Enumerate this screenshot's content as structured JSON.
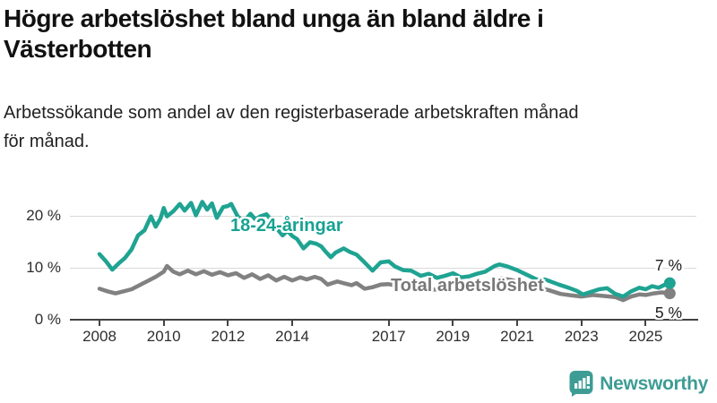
{
  "header": {
    "title": "Högre arbetslöshet bland unga än bland äldre i\nVästerbotten",
    "subtitle": "Arbetssökande som andel av den registerbaserade arbetskraften månad\nför månad."
  },
  "chart_data": {
    "type": "line",
    "title": "Högre arbetslöshet bland unga än bland äldre i Västerbotten",
    "subtitle": "Arbetssökande som andel av den registerbaserade arbetskraften månad för månad.",
    "unit": "%",
    "grid": "horizontal-only",
    "legend_position": "inline-labels",
    "xlim": [
      2008,
      2025.9
    ],
    "ylim": [
      0,
      23
    ],
    "y_ticks": [
      {
        "label": "20 %",
        "value": 20
      },
      {
        "label": "10 %",
        "value": 10
      },
      {
        "label": "0 %",
        "value": 0
      }
    ],
    "x_ticks": [
      {
        "label": "2008",
        "value": 2008
      },
      {
        "label": "2010",
        "value": 2010
      },
      {
        "label": "2012",
        "value": 2012
      },
      {
        "label": "2014",
        "value": 2014
      },
      {
        "label": "2017",
        "value": 2017
      },
      {
        "label": "2019",
        "value": 2019
      },
      {
        "label": "2021",
        "value": 2021
      },
      {
        "label": "2023",
        "value": 2023
      },
      {
        "label": "2025",
        "value": 2025
      }
    ],
    "series": [
      {
        "name": "18-24-åringar",
        "color": "#1fa392",
        "end_label": "7 %",
        "end_value": 7,
        "points": [
          [
            2008.0,
            12.6
          ],
          [
            2008.2,
            11.2
          ],
          [
            2008.4,
            9.6
          ],
          [
            2008.6,
            10.8
          ],
          [
            2008.8,
            11.9
          ],
          [
            2009.0,
            13.5
          ],
          [
            2009.2,
            16.2
          ],
          [
            2009.4,
            17.2
          ],
          [
            2009.6,
            19.9
          ],
          [
            2009.75,
            17.9
          ],
          [
            2009.9,
            19.5
          ],
          [
            2010.0,
            21.5
          ],
          [
            2010.1,
            19.9
          ],
          [
            2010.3,
            20.9
          ],
          [
            2010.5,
            22.3
          ],
          [
            2010.65,
            21.0
          ],
          [
            2010.85,
            22.5
          ],
          [
            2011.0,
            20.1
          ],
          [
            2011.2,
            22.7
          ],
          [
            2011.35,
            21.2
          ],
          [
            2011.5,
            22.4
          ],
          [
            2011.65,
            19.6
          ],
          [
            2011.85,
            21.7
          ],
          [
            2012.0,
            21.9
          ],
          [
            2012.1,
            22.3
          ],
          [
            2012.3,
            19.9
          ],
          [
            2012.5,
            18.9
          ],
          [
            2012.7,
            20.4
          ],
          [
            2012.85,
            19.3
          ],
          [
            2013.0,
            19.9
          ],
          [
            2013.2,
            20.3
          ],
          [
            2013.4,
            18.8
          ],
          [
            2013.55,
            17.3
          ],
          [
            2013.7,
            16.2
          ],
          [
            2013.85,
            17.1
          ],
          [
            2014.0,
            16.1
          ],
          [
            2014.15,
            15.5
          ],
          [
            2014.35,
            13.7
          ],
          [
            2014.55,
            14.9
          ],
          [
            2014.75,
            14.6
          ],
          [
            2014.9,
            14.1
          ],
          [
            2015.05,
            13.0
          ],
          [
            2015.2,
            12.0
          ],
          [
            2015.35,
            12.9
          ],
          [
            2015.6,
            13.7
          ],
          [
            2015.8,
            13.0
          ],
          [
            2016.0,
            12.5
          ],
          [
            2016.2,
            11.3
          ],
          [
            2016.5,
            9.4
          ],
          [
            2016.75,
            11.0
          ],
          [
            2017.0,
            11.2
          ],
          [
            2017.2,
            10.2
          ],
          [
            2017.45,
            9.5
          ],
          [
            2017.7,
            9.4
          ],
          [
            2018.0,
            8.4
          ],
          [
            2018.25,
            8.8
          ],
          [
            2018.5,
            8.0
          ],
          [
            2018.75,
            8.4
          ],
          [
            2019.0,
            8.9
          ],
          [
            2019.25,
            8.1
          ],
          [
            2019.5,
            8.3
          ],
          [
            2019.75,
            8.8
          ],
          [
            2020.0,
            9.2
          ],
          [
            2020.3,
            10.3
          ],
          [
            2020.45,
            10.6
          ],
          [
            2020.7,
            10.2
          ],
          [
            2021.0,
            9.5
          ],
          [
            2021.3,
            8.6
          ],
          [
            2021.6,
            7.7
          ],
          [
            2021.85,
            7.7
          ],
          [
            2022.0,
            7.4
          ],
          [
            2022.3,
            6.7
          ],
          [
            2022.6,
            6.1
          ],
          [
            2022.85,
            5.5
          ],
          [
            2023.05,
            4.8
          ],
          [
            2023.3,
            5.3
          ],
          [
            2023.55,
            5.8
          ],
          [
            2023.8,
            6.0
          ],
          [
            2024.05,
            4.9
          ],
          [
            2024.3,
            4.4
          ],
          [
            2024.55,
            5.4
          ],
          [
            2024.8,
            6.1
          ],
          [
            2025.0,
            5.8
          ],
          [
            2025.2,
            6.4
          ],
          [
            2025.4,
            6.1
          ],
          [
            2025.6,
            6.7
          ],
          [
            2025.75,
            7.0
          ]
        ]
      },
      {
        "name": "Total arbetslöshet",
        "color": "#818181",
        "end_label": "5 %",
        "end_value": 5,
        "points": [
          [
            2008.0,
            5.9
          ],
          [
            2008.25,
            5.4
          ],
          [
            2008.5,
            5.0
          ],
          [
            2008.75,
            5.4
          ],
          [
            2009.0,
            5.8
          ],
          [
            2009.25,
            6.6
          ],
          [
            2009.5,
            7.4
          ],
          [
            2009.75,
            8.2
          ],
          [
            2010.0,
            9.2
          ],
          [
            2010.1,
            10.3
          ],
          [
            2010.3,
            9.2
          ],
          [
            2010.5,
            8.7
          ],
          [
            2010.75,
            9.4
          ],
          [
            2011.0,
            8.7
          ],
          [
            2011.25,
            9.3
          ],
          [
            2011.5,
            8.6
          ],
          [
            2011.75,
            9.1
          ],
          [
            2012.0,
            8.5
          ],
          [
            2012.25,
            8.9
          ],
          [
            2012.5,
            8.0
          ],
          [
            2012.75,
            8.7
          ],
          [
            2013.0,
            7.8
          ],
          [
            2013.25,
            8.5
          ],
          [
            2013.5,
            7.5
          ],
          [
            2013.75,
            8.2
          ],
          [
            2014.0,
            7.5
          ],
          [
            2014.25,
            8.1
          ],
          [
            2014.45,
            7.7
          ],
          [
            2014.7,
            8.2
          ],
          [
            2014.9,
            7.8
          ],
          [
            2015.1,
            6.7
          ],
          [
            2015.4,
            7.3
          ],
          [
            2015.65,
            6.9
          ],
          [
            2015.85,
            6.6
          ],
          [
            2016.0,
            7.0
          ],
          [
            2016.25,
            5.9
          ],
          [
            2016.5,
            6.2
          ],
          [
            2016.75,
            6.7
          ],
          [
            2017.0,
            6.8
          ],
          [
            2017.3,
            6.4
          ],
          [
            2017.6,
            6.2
          ],
          [
            2018.0,
            6.1
          ],
          [
            2018.3,
            5.8
          ],
          [
            2018.6,
            5.7
          ],
          [
            2019.0,
            6.0
          ],
          [
            2019.4,
            5.8
          ],
          [
            2019.8,
            6.0
          ],
          [
            2020.0,
            6.2
          ],
          [
            2020.3,
            7.6
          ],
          [
            2020.5,
            7.9
          ],
          [
            2020.8,
            7.6
          ],
          [
            2021.0,
            7.3
          ],
          [
            2021.35,
            6.7
          ],
          [
            2021.7,
            6.1
          ],
          [
            2022.0,
            5.6
          ],
          [
            2022.35,
            4.9
          ],
          [
            2022.7,
            4.6
          ],
          [
            2023.0,
            4.4
          ],
          [
            2023.35,
            4.7
          ],
          [
            2023.7,
            4.5
          ],
          [
            2024.05,
            4.3
          ],
          [
            2024.3,
            3.7
          ],
          [
            2024.55,
            4.4
          ],
          [
            2024.8,
            4.8
          ],
          [
            2025.0,
            4.7
          ],
          [
            2025.25,
            5.0
          ],
          [
            2025.5,
            5.2
          ],
          [
            2025.75,
            5.0
          ]
        ]
      }
    ]
  },
  "branding": {
    "logo_text": "Newsworthy",
    "logo_color": "#3d9c94"
  }
}
